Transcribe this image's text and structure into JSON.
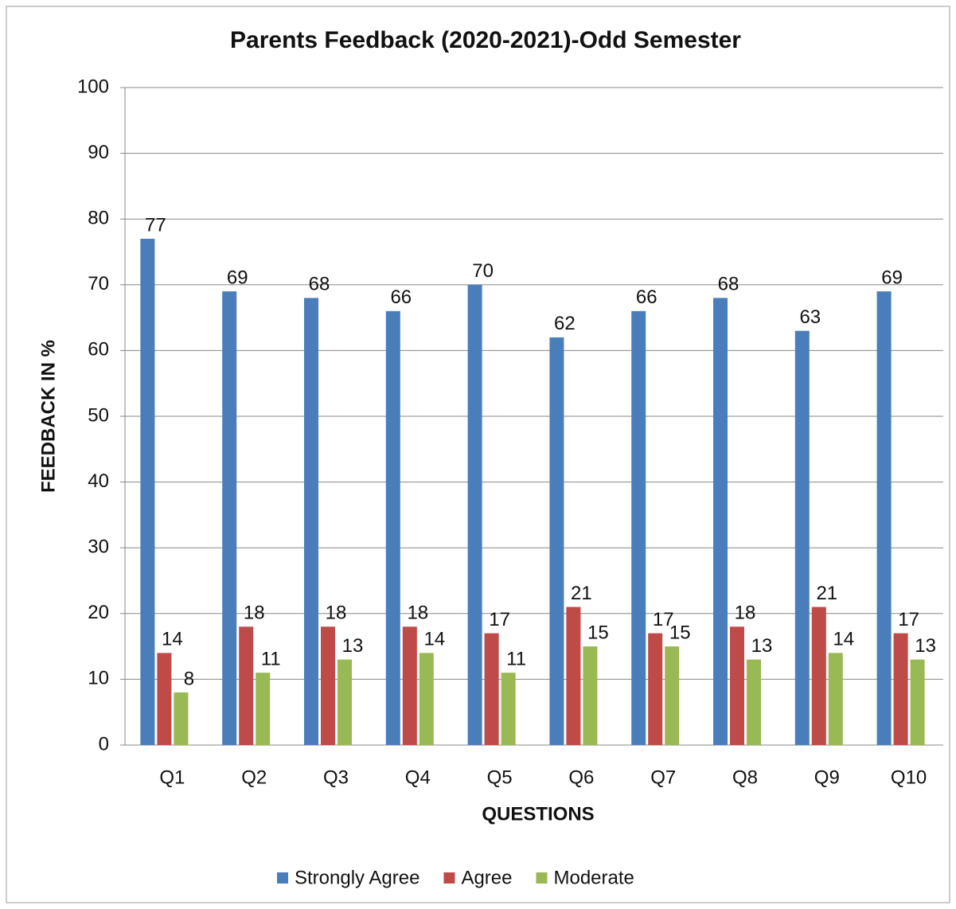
{
  "chart_data": {
    "type": "bar",
    "title": "Parents Feedback (2020-2021)-Odd Semester",
    "x_label": "QUESTIONS",
    "y_label": "FEEDBACK IN %",
    "categories": [
      "Q1",
      "Q2",
      "Q3",
      "Q4",
      "Q5",
      "Q6",
      "Q7",
      "Q8",
      "Q9",
      "Q10"
    ],
    "series": [
      {
        "name": "Strongly Agree",
        "color": "#4a7ebb",
        "values": [
          77,
          69,
          68,
          66,
          70,
          62,
          66,
          68,
          63,
          69
        ]
      },
      {
        "name": "Agree",
        "color": "#be4b48",
        "values": [
          14,
          18,
          18,
          18,
          17,
          21,
          17,
          18,
          21,
          17
        ]
      },
      {
        "name": "Moderate",
        "color": "#98b954",
        "values": [
          8,
          11,
          13,
          14,
          11,
          15,
          15,
          13,
          14,
          13
        ]
      }
    ],
    "ylim": [
      0,
      100
    ],
    "yticks": [
      0,
      10,
      20,
      30,
      40,
      50,
      60,
      70,
      80,
      90,
      100
    ],
    "grid": true,
    "legend": "bottom"
  }
}
